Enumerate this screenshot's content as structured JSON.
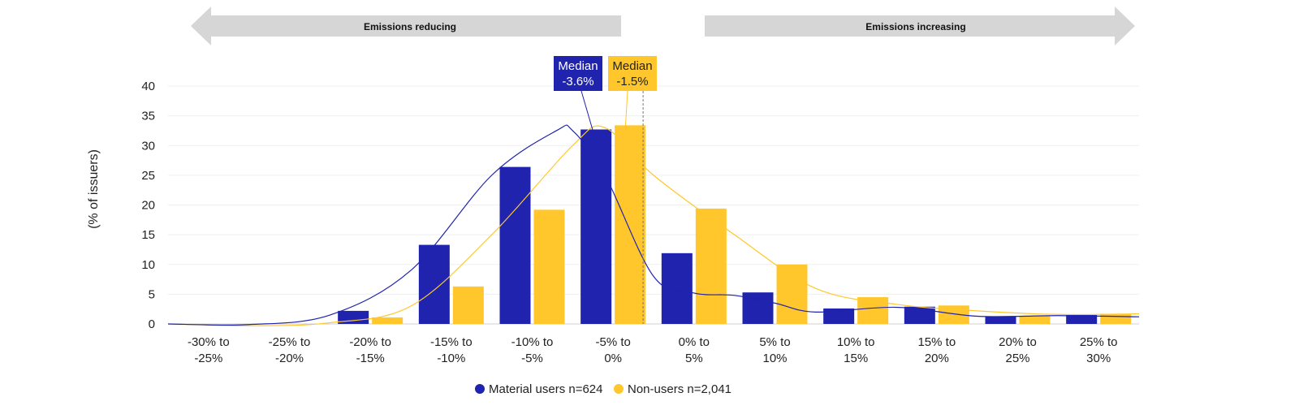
{
  "chart_data": {
    "type": "bar",
    "title": "",
    "xlabel": "",
    "ylabel": "(% of issuers)",
    "ylim": [
      0,
      40
    ],
    "yticks": [
      0,
      5,
      10,
      15,
      20,
      25,
      30,
      35,
      40
    ],
    "grid": true,
    "legend_position": "bottom-center",
    "categories": [
      [
        "-30% to",
        "-25%"
      ],
      [
        "-25% to",
        "-20%"
      ],
      [
        "-20% to",
        "-15%"
      ],
      [
        "-15% to",
        "-10%"
      ],
      [
        "-10% to",
        "-5%"
      ],
      [
        "-5% to",
        "0%"
      ],
      [
        "0% to",
        "5%"
      ],
      [
        "5% to",
        "10%"
      ],
      [
        "10% to",
        "15%"
      ],
      [
        "15% to",
        "20%"
      ],
      [
        "20% to",
        "25%"
      ],
      [
        "25% to",
        "30%"
      ]
    ],
    "series": [
      {
        "name": "Material users n=624",
        "color": "#1f23ad",
        "values": [
          0,
          0,
          2.2,
          13.3,
          26.4,
          32.7,
          11.9,
          5.3,
          2.6,
          2.9,
          1.3,
          1.5
        ],
        "curve": [
          [
            -30,
            0
          ],
          [
            -25,
            -0.1
          ],
          [
            -20,
            1.5
          ],
          [
            -15,
            9
          ],
          [
            -10,
            25
          ],
          [
            -6,
            32.5
          ],
          [
            -5,
            32.5
          ],
          [
            -3,
            25
          ],
          [
            0,
            8
          ],
          [
            2.5,
            5.2
          ],
          [
            5,
            4.8
          ],
          [
            7.5,
            3.5
          ],
          [
            10,
            2
          ],
          [
            15,
            2.8
          ],
          [
            20,
            1.3
          ],
          [
            25,
            1.4
          ],
          [
            30,
            1.2
          ]
        ],
        "median": -3.6,
        "median_label": [
          "Median",
          "-3.6%"
        ]
      },
      {
        "name": "Non-users n=2,041",
        "color": "#ffc72c",
        "values": [
          0,
          0,
          1.1,
          6.3,
          19.2,
          33.4,
          19.4,
          10.0,
          4.5,
          3.1,
          1.3,
          1.7
        ],
        "curve": [
          [
            -30,
            0
          ],
          [
            -25,
            -0.3
          ],
          [
            -20,
            0.2
          ],
          [
            -15,
            3
          ],
          [
            -10,
            15
          ],
          [
            -5,
            30
          ],
          [
            -3,
            33
          ],
          [
            0,
            25
          ],
          [
            5,
            15
          ],
          [
            10,
            6
          ],
          [
            15,
            3.3
          ],
          [
            20,
            2.2
          ],
          [
            25,
            1.6
          ],
          [
            30,
            1.7
          ]
        ],
        "median": -1.5,
        "median_label": [
          "Median",
          "-1.5%"
        ]
      }
    ],
    "x_domain": [
      -30,
      30
    ]
  },
  "arrows": {
    "left_label": "Emissions reducing",
    "right_label": "Emissions increasing",
    "color": "#d6d6d6"
  }
}
